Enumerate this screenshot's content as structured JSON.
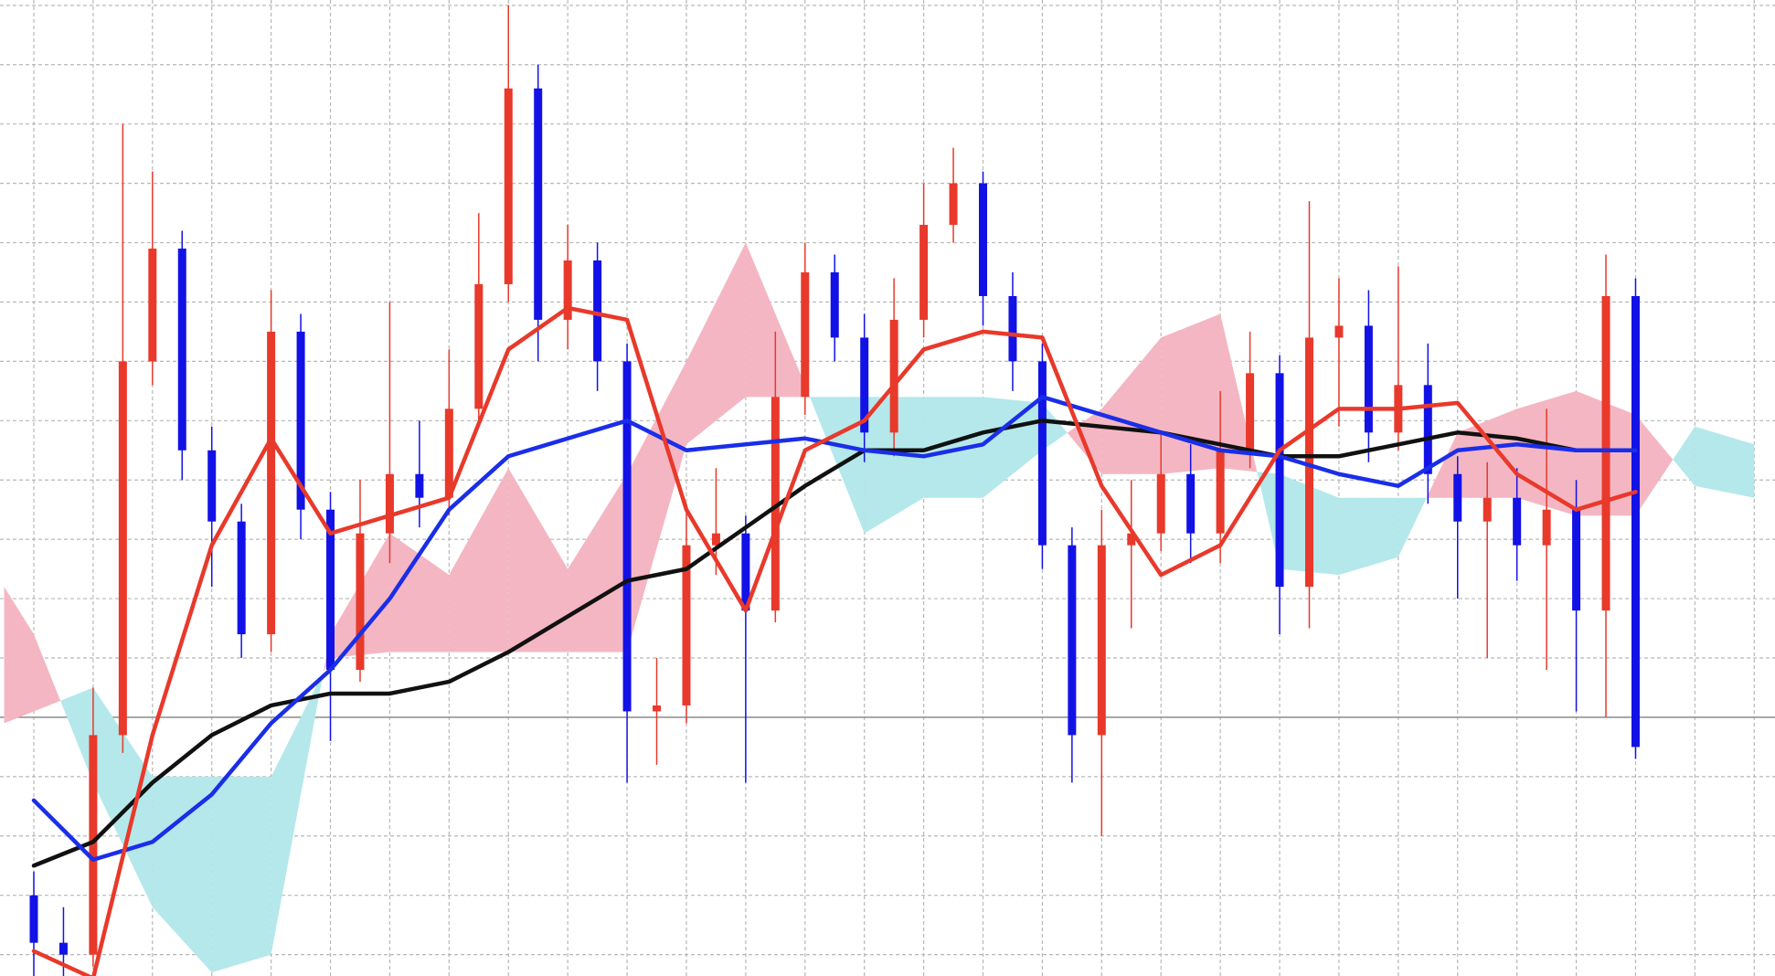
{
  "chart_data": {
    "type": "candlestick",
    "x": [
      0,
      0.5,
      1,
      1.5,
      2,
      2.5,
      3,
      3.5,
      4,
      4.5,
      5,
      5.5,
      6,
      6.5,
      7,
      7.5,
      8,
      8.5,
      9,
      9.5,
      10,
      10.5,
      11,
      11.5,
      12,
      12.5,
      13,
      13.5,
      14,
      14.5,
      15,
      15.5,
      16,
      16.5,
      17,
      17.5,
      18,
      18.5,
      19,
      19.5,
      20,
      20.5,
      21,
      21.5,
      22,
      22.5,
      23,
      23.5,
      24,
      24.5,
      25,
      25.5,
      26,
      26.5,
      27
    ],
    "open": [
      1.0,
      0.2,
      0.0,
      3.7,
      10.0,
      11.9,
      8.5,
      7.3,
      5.4,
      10.5,
      7.5,
      4.8,
      7.1,
      8.1,
      7.7,
      9.2,
      11.3,
      14.6,
      10.7,
      11.7,
      10.0,
      4.1,
      4.2,
      6.9,
      7.1,
      5.8,
      9.4,
      11.5,
      10.4,
      8.8,
      10.7,
      12.3,
      13.0,
      11.1,
      10.0,
      6.9,
      3.7,
      6.9,
      7.1,
      8.1,
      7.1,
      8.5,
      9.8,
      6.2,
      10.4,
      10.6,
      8.8,
      9.6,
      8.1,
      7.3,
      7.7,
      6.9,
      7.5,
      5.8,
      11.1
    ],
    "high": [
      1.4,
      0.8,
      4.5,
      14.0,
      13.2,
      12.2,
      8.9,
      7.6,
      11.2,
      10.8,
      7.8,
      8.0,
      11.0,
      9.0,
      10.2,
      12.5,
      16.0,
      15.0,
      12.3,
      12.0,
      10.3,
      5.0,
      7.6,
      8.2,
      7.4,
      10.5,
      12.0,
      11.8,
      10.8,
      11.4,
      13.0,
      13.6,
      13.2,
      11.5,
      10.3,
      7.2,
      7.5,
      8.0,
      8.8,
      8.6,
      9.5,
      10.5,
      10.1,
      12.7,
      11.4,
      11.2,
      11.6,
      10.3,
      8.4,
      8.3,
      8.2,
      9.2,
      8.0,
      11.8,
      11.4
    ],
    "low": [
      -0.4,
      -0.4,
      -0.2,
      3.4,
      9.6,
      8.0,
      6.2,
      5.0,
      5.1,
      7.0,
      3.6,
      4.6,
      6.6,
      7.2,
      7.4,
      9.0,
      11.0,
      10.0,
      10.2,
      9.5,
      2.9,
      3.2,
      3.9,
      6.4,
      2.9,
      5.6,
      9.1,
      10.0,
      8.3,
      8.4,
      10.4,
      12.0,
      10.6,
      9.5,
      6.5,
      2.9,
      2.0,
      5.5,
      6.8,
      6.6,
      6.6,
      8.2,
      5.4,
      5.5,
      8.9,
      8.3,
      8.5,
      7.6,
      6.0,
      5.0,
      6.3,
      4.8,
      4.1,
      4.0,
      3.3
    ],
    "close": [
      0.2,
      0.0,
      3.7,
      10.0,
      11.9,
      8.5,
      7.3,
      5.4,
      10.5,
      7.5,
      4.8,
      7.1,
      8.1,
      7.7,
      9.2,
      11.3,
      14.6,
      10.7,
      11.7,
      10.0,
      4.1,
      4.2,
      6.9,
      7.1,
      5.8,
      9.4,
      11.5,
      10.4,
      8.8,
      10.7,
      12.3,
      13.0,
      11.1,
      10.0,
      6.9,
      3.7,
      6.9,
      7.1,
      8.1,
      7.1,
      8.5,
      9.8,
      6.2,
      10.4,
      10.6,
      8.8,
      9.6,
      8.1,
      7.3,
      7.7,
      6.9,
      7.5,
      5.8,
      11.1,
      3.5
    ],
    "up_color": "#e8392b",
    "down_color": "#1212e6",
    "lines": {
      "x": [
        0,
        1,
        2,
        3,
        4,
        5,
        6,
        7,
        8,
        9,
        10,
        11,
        12,
        13,
        14,
        15,
        16,
        17,
        18,
        19,
        20,
        21,
        22,
        23,
        24,
        25,
        26,
        27
      ],
      "series": [
        {
          "color": "#111111",
          "values": [
            1.5,
            1.9,
            2.9,
            3.7,
            4.2,
            4.4,
            4.4,
            4.6,
            5.1,
            5.7,
            6.3,
            6.5,
            7.2,
            7.9,
            8.5,
            8.5,
            8.8,
            9.0,
            8.9,
            8.8,
            8.6,
            8.4,
            8.4,
            8.6,
            8.8,
            8.7,
            8.5,
            8.5
          ]
        },
        {
          "color": "#1a2ee8",
          "values": [
            2.6,
            1.6,
            1.9,
            2.7,
            3.9,
            4.8,
            6.0,
            7.5,
            8.4,
            8.7,
            9.0,
            8.5,
            8.6,
            8.7,
            8.5,
            8.4,
            8.6,
            9.4,
            9.1,
            8.8,
            8.5,
            8.4,
            8.1,
            7.9,
            8.5,
            8.6,
            8.5,
            8.5
          ]
        },
        {
          "color": "#e8392b",
          "values": [
            0.06,
            -0.4,
            3.7,
            6.9,
            8.7,
            7.1,
            7.4,
            7.7,
            10.2,
            10.9,
            10.7,
            7.5,
            5.8,
            8.5,
            9.0,
            10.2,
            10.5,
            10.4,
            7.9,
            6.4,
            6.9,
            8.5,
            9.2,
            9.2,
            9.3,
            8.1,
            7.5,
            7.8
          ]
        }
      ]
    },
    "cloud": {
      "x": [
        -0.5,
        0,
        1,
        2,
        3,
        4,
        5,
        6,
        7,
        8,
        9,
        10,
        11,
        12,
        13,
        14,
        15,
        16,
        17,
        18,
        19,
        20,
        21,
        22,
        23,
        24,
        25,
        26,
        27,
        28,
        29
      ],
      "span_a": [
        3.9,
        4.1,
        4.5,
        3.0,
        3.0,
        3.0,
        5.0,
        5.1,
        5.1,
        5.1,
        5.1,
        5.1,
        8.6,
        9.4,
        9.4,
        9.4,
        9.4,
        9.4,
        9.3,
        8.1,
        8.1,
        8.2,
        8.1,
        7.7,
        7.7,
        7.7,
        7.7,
        7.4,
        7.4,
        8.9,
        8.6
      ],
      "span_b": [
        6.2,
        5.4,
        2.9,
        0.8,
        -0.3,
        0.0,
        5.4,
        7.1,
        6.4,
        8.2,
        6.5,
        8.1,
        10.0,
        12.0,
        9.6,
        7.1,
        7.7,
        7.7,
        8.5,
        9.2,
        10.4,
        10.8,
        6.5,
        6.4,
        6.7,
        8.8,
        9.2,
        9.5,
        9.1,
        7.9,
        7.7
      ],
      "up_color": "#b4e8ea",
      "down_color": "#f4b6c2"
    },
    "hline": {
      "value": 4,
      "color": "#8c8c8c"
    },
    "xlim": [
      -0.57,
      29.35
    ],
    "ylim": [
      -0.36,
      16.09
    ],
    "xticks": [
      0,
      1,
      2,
      3,
      4,
      5,
      6,
      7,
      8,
      9,
      10,
      11,
      12,
      13,
      14,
      15,
      16,
      17,
      18,
      19,
      20,
      21,
      22,
      23,
      24,
      25,
      26,
      27,
      28,
      29
    ],
    "yticks": [
      0,
      1,
      2,
      3,
      4,
      5,
      6,
      7,
      8,
      9,
      10,
      11,
      12,
      13,
      14,
      15,
      16
    ],
    "grid": true
  }
}
